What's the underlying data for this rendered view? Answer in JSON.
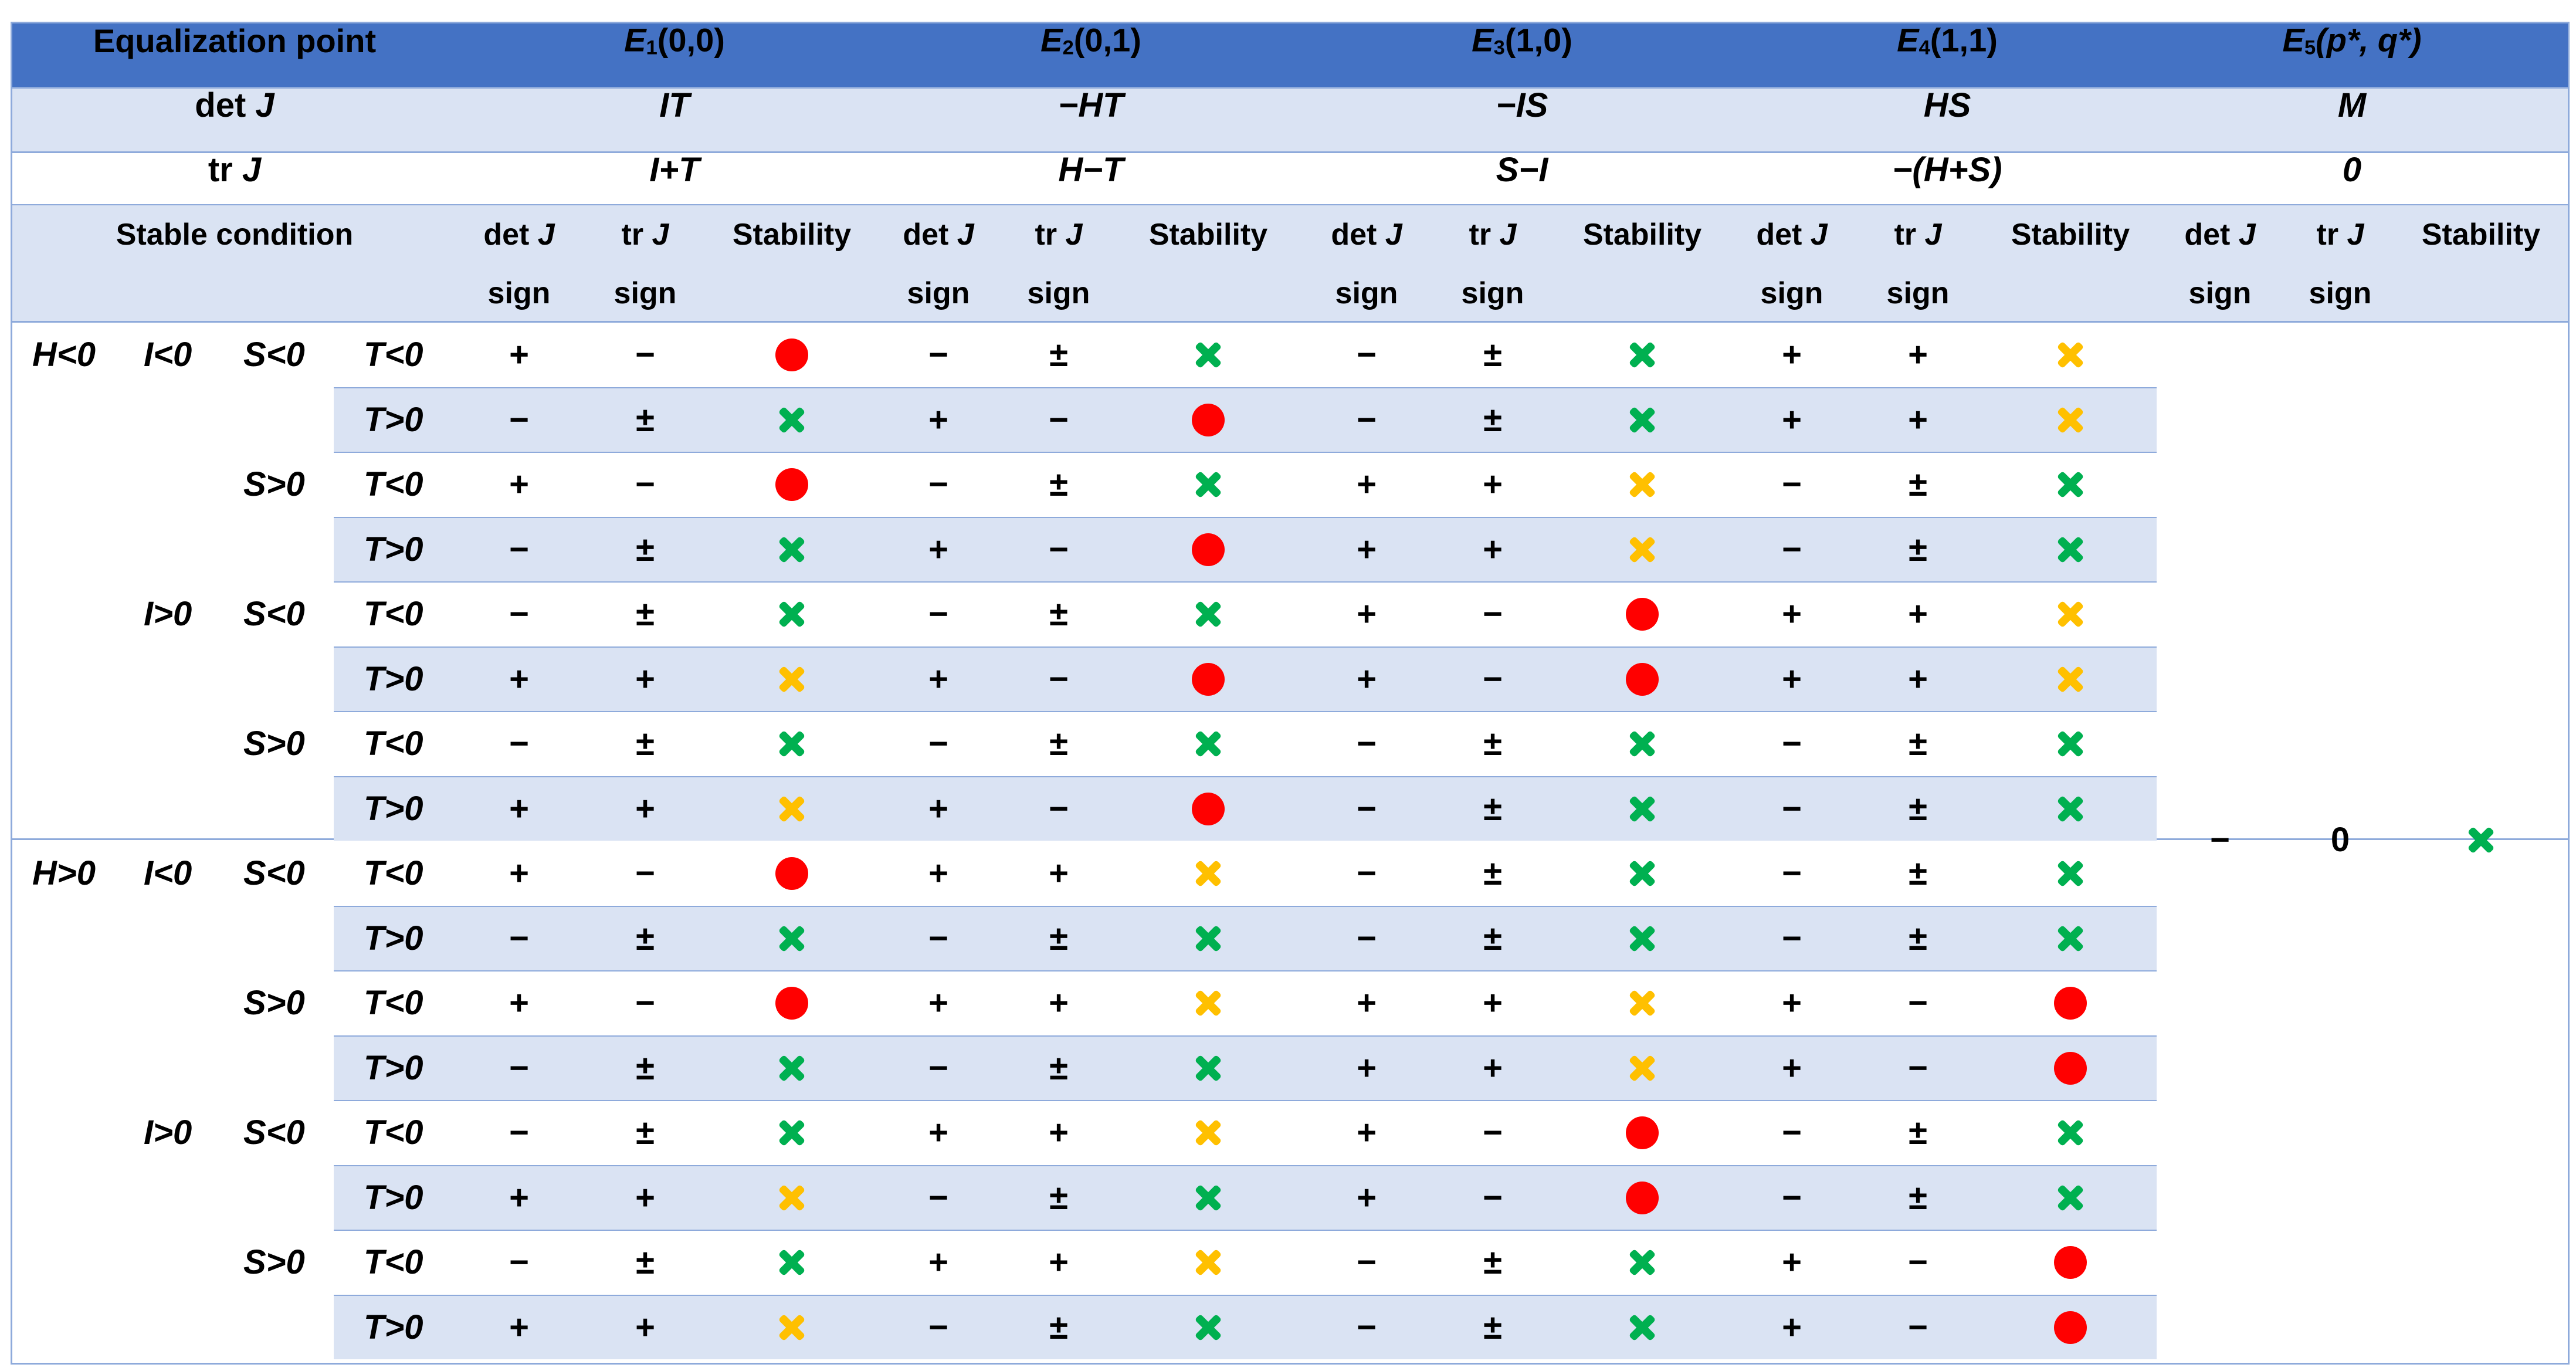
{
  "colors": {
    "header_bg": "#4472c4",
    "band_light": "#dae3f3",
    "border": "#8eaadb",
    "red": "#ff0000",
    "green": "#00b050",
    "yellow": "#ffc000"
  },
  "header": {
    "title": "Equalization point",
    "points": [
      {
        "letter": "E",
        "sub": "1",
        "rest": "(0,0)"
      },
      {
        "letter": "E",
        "sub": "2",
        "rest": "(0,1)"
      },
      {
        "letter": "E",
        "sub": "3",
        "rest": "(1,0)"
      },
      {
        "letter": "E",
        "sub": "4",
        "rest": "(1,1)"
      },
      {
        "letter": "E",
        "sub": "5",
        "rest": "(p*, q*)"
      }
    ]
  },
  "det_row": {
    "label_plain": "det ",
    "label_italic": "J",
    "values": [
      "IT",
      "−HT",
      "−IS",
      "HS",
      "M"
    ]
  },
  "tr_row": {
    "label_plain": "tr ",
    "label_italic": "J",
    "values": [
      "I+T",
      "H−T",
      "S−I",
      "−(H+S)",
      "0"
    ]
  },
  "sub_header": {
    "stable_condition": "Stable condition",
    "det_sign_1": "det ",
    "det_sign_j": "J",
    "det_sign_2": "sign",
    "tr_sign_1": "tr ",
    "tr_sign_j": "J",
    "tr_sign_2": "sign",
    "stability": "Stability"
  },
  "legend_icons": {
    "red": "red-dot-icon",
    "green": "green-cross-icon",
    "yellow": "yellow-cross-icon"
  },
  "rows": [
    {
      "H": "H<0",
      "I": "I<0",
      "S": "S<0",
      "T": "T<0",
      "cells": [
        [
          "+",
          "−",
          "red"
        ],
        [
          "−",
          "±",
          "green"
        ],
        [
          "−",
          "±",
          "green"
        ],
        [
          "+",
          "+",
          "yellow"
        ]
      ]
    },
    {
      "H": "",
      "I": "",
      "S": "",
      "T": "T>0",
      "cells": [
        [
          "−",
          "±",
          "green"
        ],
        [
          "+",
          "−",
          "red"
        ],
        [
          "−",
          "±",
          "green"
        ],
        [
          "+",
          "+",
          "yellow"
        ]
      ]
    },
    {
      "H": "",
      "I": "",
      "S": "S>0",
      "T": "T<0",
      "cells": [
        [
          "+",
          "−",
          "red"
        ],
        [
          "−",
          "±",
          "green"
        ],
        [
          "+",
          "+",
          "yellow"
        ],
        [
          "−",
          "±",
          "green"
        ]
      ]
    },
    {
      "H": "",
      "I": "",
      "S": "",
      "T": "T>0",
      "cells": [
        [
          "−",
          "±",
          "green"
        ],
        [
          "+",
          "−",
          "red"
        ],
        [
          "+",
          "+",
          "yellow"
        ],
        [
          "−",
          "±",
          "green"
        ]
      ]
    },
    {
      "H": "",
      "I": "I>0",
      "S": "S<0",
      "T": "T<0",
      "cells": [
        [
          "−",
          "±",
          "green"
        ],
        [
          "−",
          "±",
          "green"
        ],
        [
          "+",
          "−",
          "red"
        ],
        [
          "+",
          "+",
          "yellow"
        ]
      ]
    },
    {
      "H": "",
      "I": "",
      "S": "",
      "T": "T>0",
      "cells": [
        [
          "+",
          "+",
          "yellow"
        ],
        [
          "+",
          "−",
          "red"
        ],
        [
          "+",
          "−",
          "red"
        ],
        [
          "+",
          "+",
          "yellow"
        ]
      ]
    },
    {
      "H": "",
      "I": "",
      "S": "S>0",
      "T": "T<0",
      "cells": [
        [
          "−",
          "±",
          "green"
        ],
        [
          "−",
          "±",
          "green"
        ],
        [
          "−",
          "±",
          "green"
        ],
        [
          "−",
          "±",
          "green"
        ]
      ]
    },
    {
      "H": "",
      "I": "",
      "S": "",
      "T": "T>0",
      "cells": [
        [
          "+",
          "+",
          "yellow"
        ],
        [
          "+",
          "−",
          "red"
        ],
        [
          "−",
          "±",
          "green"
        ],
        [
          "−",
          "±",
          "green"
        ]
      ]
    },
    {
      "H": "H>0",
      "I": "I<0",
      "S": "S<0",
      "T": "T<0",
      "cells": [
        [
          "+",
          "−",
          "red"
        ],
        [
          "+",
          "+",
          "yellow"
        ],
        [
          "−",
          "±",
          "green"
        ],
        [
          "−",
          "±",
          "green"
        ]
      ]
    },
    {
      "H": "",
      "I": "",
      "S": "",
      "T": "T>0",
      "cells": [
        [
          "−",
          "±",
          "green"
        ],
        [
          "−",
          "±",
          "green"
        ],
        [
          "−",
          "±",
          "green"
        ],
        [
          "−",
          "±",
          "green"
        ]
      ]
    },
    {
      "H": "",
      "I": "",
      "S": "S>0",
      "T": "T<0",
      "cells": [
        [
          "+",
          "−",
          "red"
        ],
        [
          "+",
          "+",
          "yellow"
        ],
        [
          "+",
          "+",
          "yellow"
        ],
        [
          "+",
          "−",
          "red"
        ]
      ]
    },
    {
      "H": "",
      "I": "",
      "S": "",
      "T": "T>0",
      "cells": [
        [
          "−",
          "±",
          "green"
        ],
        [
          "−",
          "±",
          "green"
        ],
        [
          "+",
          "+",
          "yellow"
        ],
        [
          "+",
          "−",
          "red"
        ]
      ]
    },
    {
      "H": "",
      "I": "I>0",
      "S": "S<0",
      "T": "T<0",
      "cells": [
        [
          "−",
          "±",
          "green"
        ],
        [
          "+",
          "+",
          "yellow"
        ],
        [
          "+",
          "−",
          "red"
        ],
        [
          "−",
          "±",
          "green"
        ]
      ]
    },
    {
      "H": "",
      "I": "",
      "S": "",
      "T": "T>0",
      "cells": [
        [
          "+",
          "+",
          "yellow"
        ],
        [
          "−",
          "±",
          "green"
        ],
        [
          "+",
          "−",
          "red"
        ],
        [
          "−",
          "±",
          "green"
        ]
      ]
    },
    {
      "H": "",
      "I": "",
      "S": "S>0",
      "T": "T<0",
      "cells": [
        [
          "−",
          "±",
          "green"
        ],
        [
          "+",
          "+",
          "yellow"
        ],
        [
          "−",
          "±",
          "green"
        ],
        [
          "+",
          "−",
          "red"
        ]
      ]
    },
    {
      "H": "",
      "I": "",
      "S": "",
      "T": "T>0",
      "cells": [
        [
          "+",
          "+",
          "yellow"
        ],
        [
          "−",
          "±",
          "green"
        ],
        [
          "−",
          "±",
          "green"
        ],
        [
          "+",
          "−",
          "red"
        ]
      ]
    }
  ],
  "e5": {
    "det_sign": "−",
    "tr_sign": "0",
    "stability": "green"
  }
}
